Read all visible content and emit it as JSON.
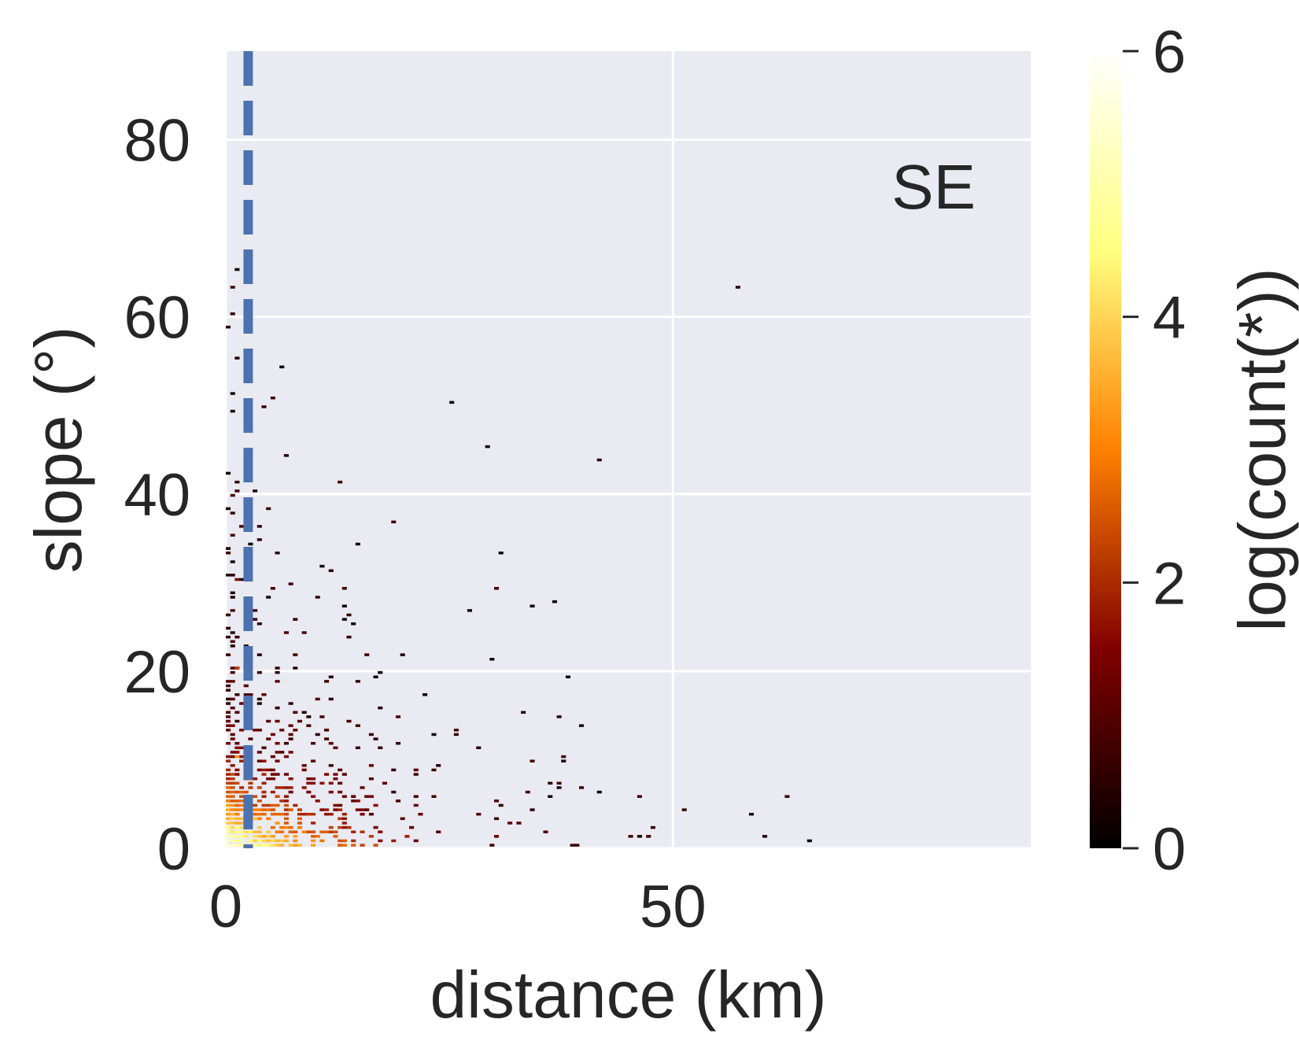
{
  "chart_data": {
    "type": "heatmap",
    "annotation": "SE",
    "xlabel": "distance (km)",
    "ylabel": "slope (°)",
    "xlim": [
      0,
      90
    ],
    "ylim": [
      0,
      90
    ],
    "x_ticks": [
      "0",
      "50"
    ],
    "y_ticks": [
      "0",
      "20",
      "40",
      "60",
      "80"
    ],
    "grid": true,
    "background": "#EAEAF2",
    "colormap": "afmhot",
    "colorbar": {
      "label": "log(count(*))",
      "range": [
        0,
        6
      ],
      "ticks": [
        "0",
        "2",
        "4",
        "6"
      ],
      "placement": "right"
    },
    "reference_line": {
      "x": 2.5,
      "style": "dashed",
      "color": "#4C72B0"
    },
    "bins": {
      "x_width": 0.5,
      "y_width": 0.5
    },
    "sampled_cells": [
      {
        "x": 0.5,
        "y": 1,
        "log_count": 5.0
      },
      {
        "x": 1,
        "y": 2,
        "log_count": 4.6
      },
      {
        "x": 2,
        "y": 1,
        "log_count": 4.2
      },
      {
        "x": 3,
        "y": 3,
        "log_count": 3.8
      },
      {
        "x": 5,
        "y": 1,
        "log_count": 3.4
      },
      {
        "x": 8,
        "y": 2,
        "log_count": 3.0
      },
      {
        "x": 12,
        "y": 1,
        "log_count": 2.6
      },
      {
        "x": 16,
        "y": 1,
        "log_count": 2.2
      },
      {
        "x": 20,
        "y": 1,
        "log_count": 1.8
      },
      {
        "x": 30,
        "y": 1,
        "log_count": 1.2
      },
      {
        "x": 45,
        "y": 1,
        "log_count": 0.7
      },
      {
        "x": 60,
        "y": 1,
        "log_count": 0.3
      },
      {
        "x": 65,
        "y": 0.5,
        "log_count": 0.1
      },
      {
        "x": 1,
        "y": 10,
        "log_count": 3.2
      },
      {
        "x": 1,
        "y": 20,
        "log_count": 2.2
      },
      {
        "x": 1,
        "y": 30,
        "log_count": 1.4
      },
      {
        "x": 1,
        "y": 40,
        "log_count": 0.8
      },
      {
        "x": 1,
        "y": 55,
        "log_count": 0.3
      },
      {
        "x": 1,
        "y": 65,
        "log_count": 0.1
      },
      {
        "x": 25,
        "y": 50,
        "log_count": 0.1
      },
      {
        "x": 29,
        "y": 45,
        "log_count": 0.1
      },
      {
        "x": 34,
        "y": 27,
        "log_count": 0.1
      },
      {
        "x": 38,
        "y": 19,
        "log_count": 0.1
      }
    ]
  }
}
